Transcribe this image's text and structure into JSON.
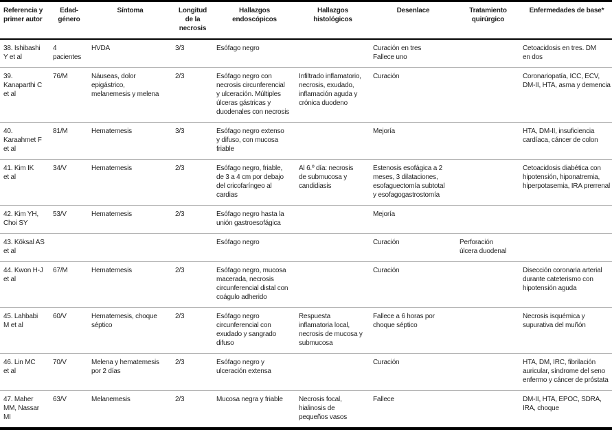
{
  "document": {
    "background_color": "#ffffff",
    "text_color": "#1f1f1f",
    "strong_rule_color": "#000000",
    "light_rule_color": "#b5b5b5"
  },
  "table": {
    "columns": [
      {
        "key": "referencia",
        "label": "Referencia y\nprimer autor"
      },
      {
        "key": "edad",
        "label": "Edad-\ngénero"
      },
      {
        "key": "sintoma",
        "label": "Síntoma"
      },
      {
        "key": "longitud",
        "label": "Longitud\nde la\nnecrosis"
      },
      {
        "key": "endoscopicos",
        "label": "Hallazgos\nendoscópicos"
      },
      {
        "key": "histologicos",
        "label": "Hallazgos\nhistológicos"
      },
      {
        "key": "desenlace",
        "label": "Desenlace"
      },
      {
        "key": "tratamiento",
        "label": "Tratamiento\nquirúrgico"
      },
      {
        "key": "enfermedades",
        "label": "Enfermedades de base*"
      }
    ],
    "rows": [
      {
        "referencia": "38. Ishibashi\nY et al",
        "edad": "4\npacientes",
        "sintoma": "HVDA",
        "longitud": "3/3",
        "endoscopicos": "Esófago negro",
        "histologicos": "",
        "desenlace": "Curación en tres\nFallece uno",
        "tratamiento": "",
        "enfermedades": "Cetoacidosis en tres. DM\nen dos"
      },
      {
        "referencia": "39.\nKanaparthi C\net al",
        "edad": "76/M",
        "sintoma": "Náuseas, dolor\nepigástrico,\nmelanemesis y melena",
        "longitud": "2/3",
        "endoscopicos": "Esófago negro con\nnecrosis circunferencial\ny ulceración. Múltiples\núlceras gástricas y\nduodenales con necrosis",
        "histologicos": "Infiltrado inflamatorio,\nnecrosis, exudado,\ninflamación aguda y\ncrónica duodeno",
        "desenlace": "Curación",
        "tratamiento": "",
        "enfermedades": "Coronariopatía, ICC, ECV,\nDM-II, HTA, asma y demencia"
      },
      {
        "referencia": "40.\nKaraahmet F\net al",
        "edad": "81/M",
        "sintoma": "Hematemesis",
        "longitud": "3/3",
        "endoscopicos": "Esófago negro extenso\ny difuso, con mucosa\nfriable",
        "histologicos": "",
        "desenlace": "Mejoría",
        "tratamiento": "",
        "enfermedades": "HTA, DM-II, insuficiencia\ncardíaca, cáncer de colon"
      },
      {
        "referencia": "41. Kim IK\net al",
        "edad": "34/V",
        "sintoma": "Hematemesis",
        "longitud": "2/3",
        "endoscopicos": "Esófago negro, friable,\nde 3 a 4 cm por debajo\ndel cricofaríngeo al\ncardias",
        "histologicos": "Al 6.º día: necrosis\nde submucosa y\ncandidiasis",
        "desenlace": "Estenosis esofágica a 2\nmeses, 3 dilataciones,\nesofaguectomía subtotal\ny esofagogastrostomía",
        "tratamiento": "",
        "enfermedades": "Cetoacidosis diabética con\nhipotensión, hiponatremia,\nhiperpotasemia, IRA prerrenal"
      },
      {
        "referencia": "42. Kim YH,\nChoi SY",
        "edad": "53/V",
        "sintoma": "Hematemesis",
        "longitud": "2/3",
        "endoscopicos": "Esófago negro hasta la\nunión gastroesofágica",
        "histologicos": "",
        "desenlace": "Mejoría",
        "tratamiento": "",
        "enfermedades": ""
      },
      {
        "referencia": "43. Köksal AS\net al",
        "edad": "",
        "sintoma": "",
        "longitud": "",
        "endoscopicos": "Esófago negro",
        "histologicos": "",
        "desenlace": "Curación",
        "tratamiento": "Perforación\núlcera duodenal",
        "enfermedades": ""
      },
      {
        "referencia": "44. Kwon H-J\net al",
        "edad": "67/M",
        "sintoma": "Hematemesis",
        "longitud": "2/3",
        "endoscopicos": "Esófago negro, mucosa\nmacerada, necrosis\ncircunferencial distal con\ncoágulo adherido",
        "histologicos": "",
        "desenlace": "Curación",
        "tratamiento": "",
        "enfermedades": "Disección coronaria arterial\ndurante cateterismo con\nhipotensión aguda"
      },
      {
        "referencia": "45. Lahbabi\nM et al",
        "edad": "60/V",
        "sintoma": "Hematemesis, choque\nséptico",
        "longitud": "2/3",
        "endoscopicos": "Esófago negro\ncircunferencial con\nexudado y sangrado\ndifuso",
        "histologicos": "Respuesta\ninflamatoria local,\nnecrosis de mucosa y\nsubmucosa",
        "desenlace": "Fallece a 6 horas por\nchoque séptico",
        "tratamiento": "",
        "enfermedades": "Necrosis isquémica y\nsupurativa del muñón"
      },
      {
        "referencia": "46. Lin MC\net al",
        "edad": "70/V",
        "sintoma": "Melena y hematemesis\npor 2 días",
        "longitud": "2/3",
        "endoscopicos": "Esófago negro y\nulceración extensa",
        "histologicos": "",
        "desenlace": "Curación",
        "tratamiento": "",
        "enfermedades": "HTA, DM, IRC, fibrilación\nauricular, síndrome del seno\nenfermo y cáncer de próstata"
      },
      {
        "referencia": "47. Maher\nMM, Nassar\nMI",
        "edad": "63/V",
        "sintoma": "Melanemesis",
        "longitud": "2/3",
        "endoscopicos": "Mucosa negra y friable",
        "histologicos": "Necrosis focal,\nhialinosis de\npequeños vasos",
        "desenlace": "Fallece",
        "tratamiento": "",
        "enfermedades": "DM-II, HTA, EPOC, SDRA,\nIRA, choque"
      }
    ]
  }
}
